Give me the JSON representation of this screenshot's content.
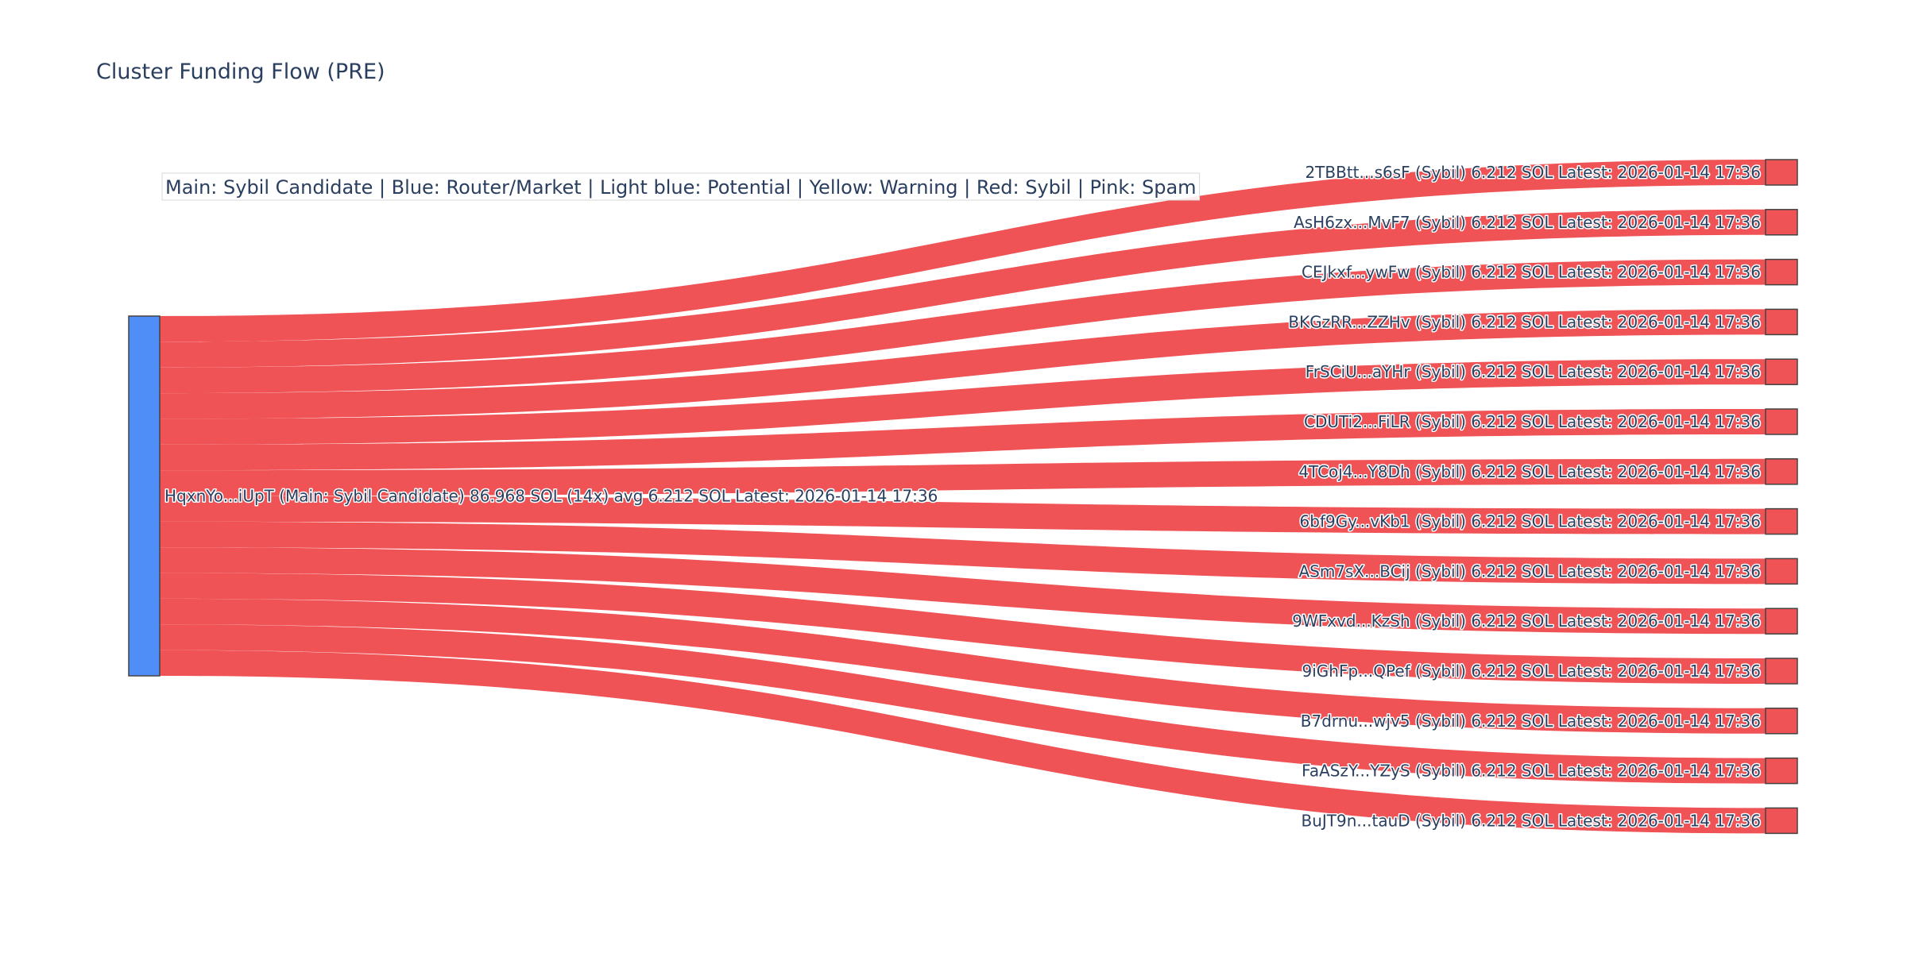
{
  "chart_data": {
    "type": "sankey",
    "title": "Cluster Funding Flow (PRE)",
    "legend_text": "Main: Sybil Candidate  |  Blue: Router/Market | Light blue: Potential | Yellow: Warning | Red: Sybil | Pink: Spam",
    "colors": {
      "main_node": "#4f8ef7",
      "sybil_node": "#ef5356",
      "link": "#ef5356",
      "text": "#2a3f5f"
    },
    "source": {
      "label": "HqxnYo...iUpT (Main: Sybil Candidate) 86.968 SOL (14x) avg 6.212 SOL Latest: 2026-01-14 17:36",
      "category": "Main: Sybil Candidate",
      "total_sol": 86.968
    },
    "targets": [
      {
        "label": "2TBBtt...s6sF (Sybil) 6.212 SOL Latest: 2026-01-14 17:36",
        "value": 6.212,
        "category": "Sybil"
      },
      {
        "label": "AsH6zx...MvF7 (Sybil) 6.212 SOL Latest: 2026-01-14 17:36",
        "value": 6.212,
        "category": "Sybil"
      },
      {
        "label": "CEJkxf...ywFw (Sybil) 6.212 SOL Latest: 2026-01-14 17:36",
        "value": 6.212,
        "category": "Sybil"
      },
      {
        "label": "BKGzRR...ZZHv (Sybil) 6.212 SOL Latest: 2026-01-14 17:36",
        "value": 6.212,
        "category": "Sybil"
      },
      {
        "label": "FrSCiU...aYHr (Sybil) 6.212 SOL Latest: 2026-01-14 17:36",
        "value": 6.212,
        "category": "Sybil"
      },
      {
        "label": "CDUTi2...FiLR (Sybil) 6.212 SOL Latest: 2026-01-14 17:36",
        "value": 6.212,
        "category": "Sybil"
      },
      {
        "label": "4TCoj4...Y8Dh (Sybil) 6.212 SOL Latest: 2026-01-14 17:36",
        "value": 6.212,
        "category": "Sybil"
      },
      {
        "label": "6bf9Gy...vKb1 (Sybil) 6.212 SOL Latest: 2026-01-14 17:36",
        "value": 6.212,
        "category": "Sybil"
      },
      {
        "label": "ASm7sX...BCij (Sybil) 6.212 SOL Latest: 2026-01-14 17:36",
        "value": 6.212,
        "category": "Sybil"
      },
      {
        "label": "9WFxvd...KzSh (Sybil) 6.212 SOL Latest: 2026-01-14 17:36",
        "value": 6.212,
        "category": "Sybil"
      },
      {
        "label": "9iGhFp...QPef (Sybil) 6.212 SOL Latest: 2026-01-14 17:36",
        "value": 6.212,
        "category": "Sybil"
      },
      {
        "label": "B7drnu...wjv5 (Sybil) 6.212 SOL Latest: 2026-01-14 17:36",
        "value": 6.212,
        "category": "Sybil"
      },
      {
        "label": "FaASzY...YZyS (Sybil) 6.212 SOL Latest: 2026-01-14 17:36",
        "value": 6.212,
        "category": "Sybil"
      },
      {
        "label": "BuJT9n...tauD (Sybil) 6.212 SOL Latest: 2026-01-14 17:36",
        "value": 6.212,
        "category": "Sybil"
      }
    ]
  }
}
